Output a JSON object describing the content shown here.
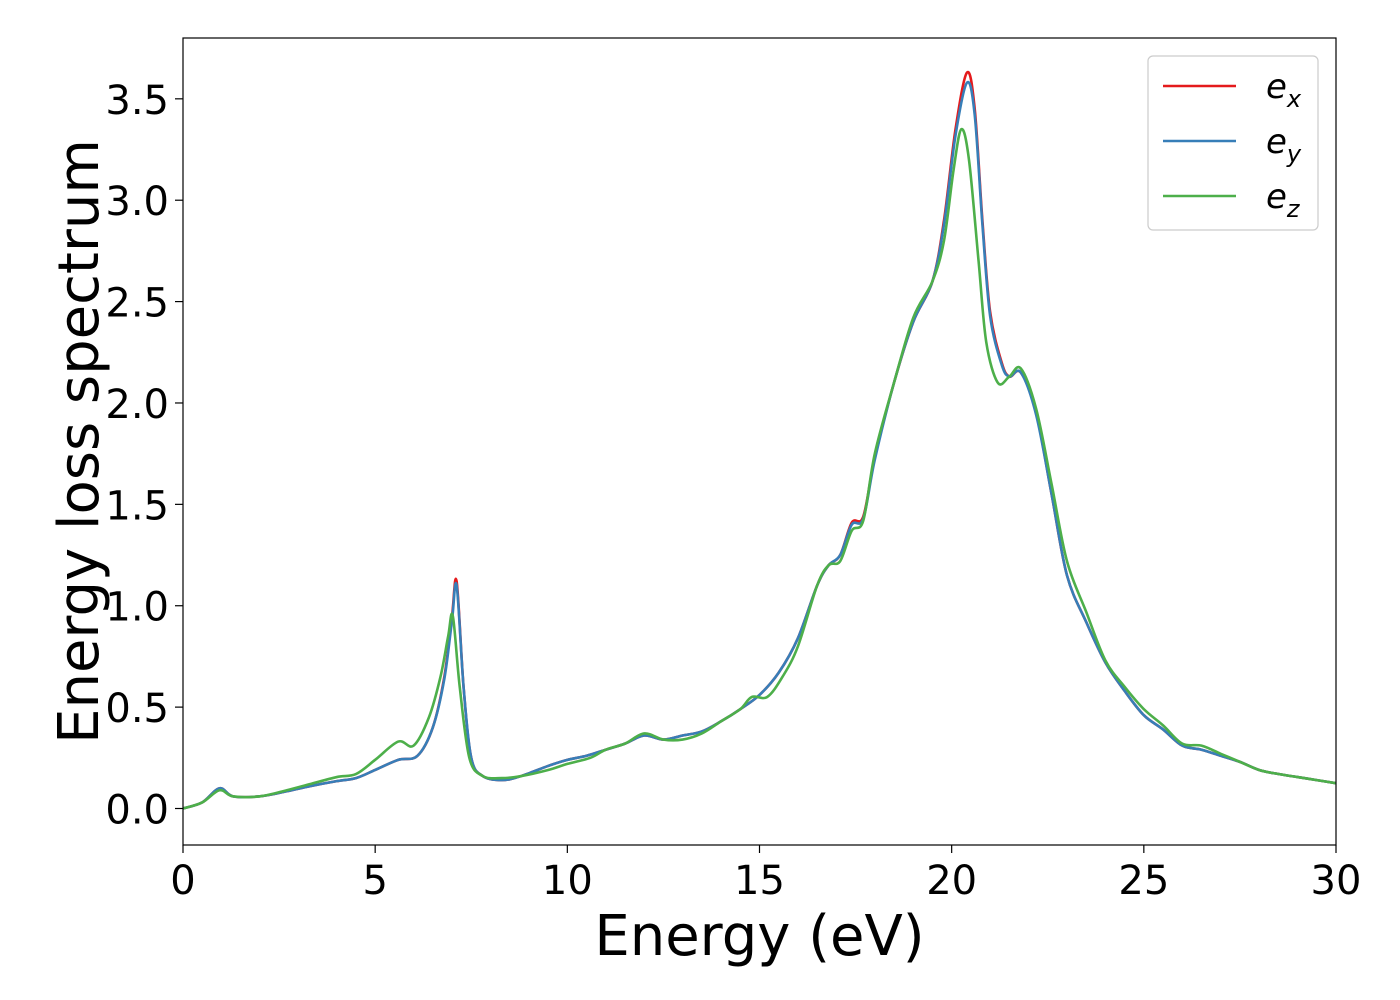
{
  "chart_data": {
    "type": "line",
    "xlabel": "Energy (eV)",
    "ylabel": "Energy loss spectrum",
    "xlim": [
      0,
      30
    ],
    "ylim": [
      -0.18,
      3.8
    ],
    "x_ticks": [
      0,
      5,
      10,
      15,
      20,
      25,
      30
    ],
    "x_tick_labels": [
      "0",
      "5",
      "10",
      "15",
      "20",
      "25",
      "30"
    ],
    "y_ticks": [
      0.0,
      0.5,
      1.0,
      1.5,
      2.0,
      2.5,
      3.0,
      3.5
    ],
    "y_tick_labels": [
      "0.0",
      "0.5",
      "1.0",
      "1.5",
      "2.0",
      "2.5",
      "3.0",
      "3.5"
    ],
    "grid": false,
    "legend_position": "top-right",
    "series": [
      {
        "name": "e_x",
        "legend_base": "e",
        "legend_sub": "x",
        "color": "#e41a1c",
        "points": [
          [
            0,
            0.0
          ],
          [
            0.5,
            0.03
          ],
          [
            0.95,
            0.1
          ],
          [
            1.3,
            0.06
          ],
          [
            2.0,
            0.06
          ],
          [
            2.7,
            0.085
          ],
          [
            3.3,
            0.11
          ],
          [
            4.0,
            0.135
          ],
          [
            4.5,
            0.15
          ],
          [
            5.0,
            0.19
          ],
          [
            5.6,
            0.24
          ],
          [
            6.1,
            0.26
          ],
          [
            6.5,
            0.4
          ],
          [
            6.8,
            0.65
          ],
          [
            7.0,
            0.95
          ],
          [
            7.12,
            1.12
          ],
          [
            7.3,
            0.6
          ],
          [
            7.5,
            0.25
          ],
          [
            7.8,
            0.16
          ],
          [
            8.3,
            0.14
          ],
          [
            8.8,
            0.16
          ],
          [
            9.5,
            0.21
          ],
          [
            10.0,
            0.24
          ],
          [
            10.5,
            0.26
          ],
          [
            11.0,
            0.29
          ],
          [
            11.5,
            0.32
          ],
          [
            12.0,
            0.36
          ],
          [
            12.5,
            0.34
          ],
          [
            13.0,
            0.36
          ],
          [
            13.5,
            0.38
          ],
          [
            14.0,
            0.43
          ],
          [
            14.5,
            0.49
          ],
          [
            15.0,
            0.56
          ],
          [
            15.5,
            0.67
          ],
          [
            16.0,
            0.84
          ],
          [
            16.5,
            1.1
          ],
          [
            16.8,
            1.2
          ],
          [
            17.1,
            1.25
          ],
          [
            17.4,
            1.41
          ],
          [
            17.7,
            1.44
          ],
          [
            18.0,
            1.73
          ],
          [
            18.5,
            2.1
          ],
          [
            19.0,
            2.4
          ],
          [
            19.5,
            2.6
          ],
          [
            19.8,
            2.9
          ],
          [
            20.1,
            3.35
          ],
          [
            20.4,
            3.63
          ],
          [
            20.6,
            3.45
          ],
          [
            20.8,
            2.9
          ],
          [
            21.0,
            2.45
          ],
          [
            21.3,
            2.2
          ],
          [
            21.5,
            2.13
          ],
          [
            21.8,
            2.15
          ],
          [
            22.2,
            1.95
          ],
          [
            22.6,
            1.55
          ],
          [
            23.0,
            1.15
          ],
          [
            23.5,
            0.92
          ],
          [
            24.0,
            0.72
          ],
          [
            24.5,
            0.58
          ],
          [
            25.0,
            0.46
          ],
          [
            25.5,
            0.39
          ],
          [
            26.0,
            0.31
          ],
          [
            26.5,
            0.29
          ],
          [
            27.0,
            0.26
          ],
          [
            27.5,
            0.23
          ],
          [
            28.0,
            0.19
          ],
          [
            28.5,
            0.17
          ],
          [
            29.0,
            0.155
          ],
          [
            29.5,
            0.14
          ],
          [
            30.0,
            0.125
          ]
        ]
      },
      {
        "name": "e_y",
        "legend_base": "e",
        "legend_sub": "y",
        "color": "#377eb8",
        "points": [
          [
            0,
            0.0
          ],
          [
            0.5,
            0.03
          ],
          [
            0.95,
            0.1
          ],
          [
            1.3,
            0.06
          ],
          [
            2.0,
            0.06
          ],
          [
            2.7,
            0.085
          ],
          [
            3.3,
            0.11
          ],
          [
            4.0,
            0.135
          ],
          [
            4.5,
            0.15
          ],
          [
            5.0,
            0.19
          ],
          [
            5.6,
            0.24
          ],
          [
            6.1,
            0.26
          ],
          [
            6.5,
            0.4
          ],
          [
            6.8,
            0.64
          ],
          [
            7.0,
            0.93
          ],
          [
            7.12,
            1.1
          ],
          [
            7.3,
            0.6
          ],
          [
            7.5,
            0.25
          ],
          [
            7.8,
            0.16
          ],
          [
            8.3,
            0.14
          ],
          [
            8.8,
            0.16
          ],
          [
            9.5,
            0.21
          ],
          [
            10.0,
            0.24
          ],
          [
            10.5,
            0.26
          ],
          [
            11.0,
            0.29
          ],
          [
            11.5,
            0.32
          ],
          [
            12.0,
            0.36
          ],
          [
            12.5,
            0.34
          ],
          [
            13.0,
            0.36
          ],
          [
            13.5,
            0.38
          ],
          [
            14.0,
            0.43
          ],
          [
            14.5,
            0.49
          ],
          [
            15.0,
            0.56
          ],
          [
            15.5,
            0.67
          ],
          [
            16.0,
            0.84
          ],
          [
            16.5,
            1.1
          ],
          [
            16.8,
            1.2
          ],
          [
            17.1,
            1.25
          ],
          [
            17.4,
            1.4
          ],
          [
            17.7,
            1.43
          ],
          [
            18.0,
            1.72
          ],
          [
            18.5,
            2.1
          ],
          [
            19.0,
            2.4
          ],
          [
            19.5,
            2.6
          ],
          [
            19.8,
            2.88
          ],
          [
            20.1,
            3.32
          ],
          [
            20.4,
            3.58
          ],
          [
            20.6,
            3.42
          ],
          [
            20.8,
            2.88
          ],
          [
            21.0,
            2.43
          ],
          [
            21.3,
            2.19
          ],
          [
            21.5,
            2.13
          ],
          [
            21.8,
            2.15
          ],
          [
            22.2,
            1.94
          ],
          [
            22.6,
            1.55
          ],
          [
            23.0,
            1.15
          ],
          [
            23.5,
            0.92
          ],
          [
            24.0,
            0.72
          ],
          [
            24.5,
            0.58
          ],
          [
            25.0,
            0.46
          ],
          [
            25.5,
            0.39
          ],
          [
            26.0,
            0.31
          ],
          [
            26.5,
            0.29
          ],
          [
            27.0,
            0.26
          ],
          [
            27.5,
            0.23
          ],
          [
            28.0,
            0.19
          ],
          [
            28.5,
            0.17
          ],
          [
            29.0,
            0.155
          ],
          [
            29.5,
            0.14
          ],
          [
            30.0,
            0.125
          ]
        ]
      },
      {
        "name": "e_z",
        "legend_base": "e",
        "legend_sub": "z",
        "color": "#4daf4a",
        "points": [
          [
            0,
            0.0
          ],
          [
            0.5,
            0.03
          ],
          [
            0.95,
            0.09
          ],
          [
            1.3,
            0.06
          ],
          [
            2.0,
            0.06
          ],
          [
            2.7,
            0.09
          ],
          [
            3.3,
            0.12
          ],
          [
            4.0,
            0.155
          ],
          [
            4.5,
            0.17
          ],
          [
            5.0,
            0.24
          ],
          [
            5.6,
            0.33
          ],
          [
            6.0,
            0.31
          ],
          [
            6.4,
            0.45
          ],
          [
            6.7,
            0.65
          ],
          [
            6.9,
            0.85
          ],
          [
            7.02,
            0.95
          ],
          [
            7.2,
            0.6
          ],
          [
            7.45,
            0.25
          ],
          [
            7.8,
            0.16
          ],
          [
            8.3,
            0.15
          ],
          [
            8.8,
            0.16
          ],
          [
            9.5,
            0.19
          ],
          [
            10.0,
            0.22
          ],
          [
            10.6,
            0.25
          ],
          [
            11.0,
            0.29
          ],
          [
            11.5,
            0.32
          ],
          [
            12.0,
            0.37
          ],
          [
            12.5,
            0.34
          ],
          [
            13.0,
            0.34
          ],
          [
            13.5,
            0.37
          ],
          [
            14.0,
            0.43
          ],
          [
            14.5,
            0.49
          ],
          [
            14.8,
            0.55
          ],
          [
            15.2,
            0.55
          ],
          [
            15.6,
            0.65
          ],
          [
            16.0,
            0.8
          ],
          [
            16.5,
            1.1
          ],
          [
            16.8,
            1.2
          ],
          [
            17.1,
            1.22
          ],
          [
            17.4,
            1.37
          ],
          [
            17.7,
            1.42
          ],
          [
            18.0,
            1.75
          ],
          [
            18.5,
            2.1
          ],
          [
            19.0,
            2.42
          ],
          [
            19.5,
            2.6
          ],
          [
            19.8,
            2.8
          ],
          [
            20.05,
            3.15
          ],
          [
            20.25,
            3.35
          ],
          [
            20.45,
            3.2
          ],
          [
            20.7,
            2.7
          ],
          [
            20.9,
            2.3
          ],
          [
            21.2,
            2.1
          ],
          [
            21.5,
            2.13
          ],
          [
            21.8,
            2.17
          ],
          [
            22.2,
            1.97
          ],
          [
            22.6,
            1.6
          ],
          [
            23.0,
            1.22
          ],
          [
            23.5,
            0.97
          ],
          [
            24.0,
            0.73
          ],
          [
            24.5,
            0.6
          ],
          [
            25.0,
            0.49
          ],
          [
            25.5,
            0.41
          ],
          [
            26.0,
            0.32
          ],
          [
            26.5,
            0.31
          ],
          [
            27.0,
            0.27
          ],
          [
            27.5,
            0.23
          ],
          [
            28.0,
            0.19
          ],
          [
            28.5,
            0.17
          ],
          [
            29.0,
            0.155
          ],
          [
            29.5,
            0.14
          ],
          [
            30.0,
            0.125
          ]
        ]
      }
    ]
  }
}
